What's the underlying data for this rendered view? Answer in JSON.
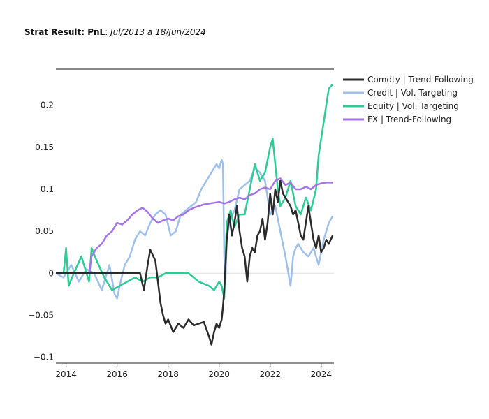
{
  "chart_data": {
    "type": "line",
    "title_bold": "Strat Result: PnL",
    "title_sep": ": ",
    "title_italic": "Jul/2013 a 18/Jun/2024",
    "xlabel": "",
    "ylabel": "",
    "xlim": [
      2013.6,
      2024.5
    ],
    "ylim": [
      -0.107,
      0.243
    ],
    "x_ticks": [
      2014,
      2016,
      2018,
      2020,
      2022,
      2024
    ],
    "y_ticks": [
      -0.1,
      -0.05,
      0,
      0.05,
      0.1,
      0.15,
      0.2
    ],
    "y_tick_labels": [
      "−0.1",
      "−0.05",
      "0",
      "0.05",
      "0.1",
      "0.15",
      "0.2"
    ],
    "legend_position": "top-right",
    "series": [
      {
        "name": "Comdty | Trend-Following",
        "color": "#2b2b2b",
        "x": [
          2013.6,
          2014.0,
          2015.0,
          2016.0,
          2016.9,
          2017.05,
          2017.2,
          2017.3,
          2017.5,
          2017.6,
          2017.7,
          2017.8,
          2017.9,
          2018.0,
          2018.2,
          2018.4,
          2018.6,
          2018.8,
          2019.0,
          2019.2,
          2019.4,
          2019.6,
          2019.7,
          2019.8,
          2019.9,
          2020.0,
          2020.1,
          2020.15,
          2020.2,
          2020.3,
          2020.4,
          2020.5,
          2020.6,
          2020.7,
          2020.8,
          2020.9,
          2021.0,
          2021.1,
          2021.2,
          2021.3,
          2021.4,
          2021.5,
          2021.6,
          2021.7,
          2021.8,
          2021.9,
          2022.0,
          2022.1,
          2022.2,
          2022.3,
          2022.4,
          2022.5,
          2022.6,
          2022.7,
          2022.8,
          2022.9,
          2023.0,
          2023.1,
          2023.2,
          2023.3,
          2023.4,
          2023.5,
          2023.6,
          2023.7,
          2023.8,
          2023.9,
          2024.0,
          2024.1,
          2024.2,
          2024.3,
          2024.45
        ],
        "y": [
          0,
          0,
          0,
          0,
          0,
          -0.02,
          0.01,
          0.028,
          0.015,
          -0.01,
          -0.035,
          -0.05,
          -0.06,
          -0.055,
          -0.07,
          -0.06,
          -0.065,
          -0.055,
          -0.062,
          -0.06,
          -0.058,
          -0.075,
          -0.085,
          -0.07,
          -0.06,
          -0.065,
          -0.055,
          -0.04,
          -0.02,
          0.04,
          0.07,
          0.045,
          0.06,
          0.08,
          0.05,
          0.03,
          0.02,
          -0.01,
          0.02,
          0.03,
          0.025,
          0.045,
          0.05,
          0.065,
          0.04,
          0.06,
          0.095,
          0.07,
          0.1,
          0.085,
          0.11,
          0.095,
          0.09,
          0.085,
          0.08,
          0.07,
          0.075,
          0.06,
          0.045,
          0.04,
          0.06,
          0.08,
          0.06,
          0.04,
          0.03,
          0.045,
          0.025,
          0.03,
          0.04,
          0.035,
          0.045
        ]
      },
      {
        "name": "Credit | Vol. Targeting",
        "color": "#9ec0ea",
        "x": [
          2013.6,
          2013.9,
          2014.2,
          2014.5,
          2014.8,
          2015.1,
          2015.4,
          2015.7,
          2015.9,
          2016.0,
          2016.1,
          2016.3,
          2016.5,
          2016.7,
          2016.9,
          2017.1,
          2017.3,
          2017.5,
          2017.7,
          2017.9,
          2018.1,
          2018.3,
          2018.5,
          2018.7,
          2018.9,
          2019.1,
          2019.3,
          2019.5,
          2019.7,
          2019.9,
          2020.0,
          2020.1,
          2020.15,
          2020.2,
          2020.25,
          2020.3,
          2020.4,
          2020.6,
          2020.8,
          2021.0,
          2021.2,
          2021.4,
          2021.6,
          2021.8,
          2022.0,
          2022.2,
          2022.4,
          2022.6,
          2022.8,
          2022.9,
          2023.0,
          2023.1,
          2023.3,
          2023.5,
          2023.7,
          2023.9,
          2024.1,
          2024.3,
          2024.45
        ],
        "y": [
          0,
          -0.005,
          0.01,
          -0.01,
          0.005,
          0.0,
          -0.02,
          0.01,
          -0.025,
          -0.03,
          -0.015,
          0.01,
          0.02,
          0.04,
          0.05,
          0.045,
          0.06,
          0.07,
          0.075,
          0.07,
          0.045,
          0.05,
          0.07,
          0.075,
          0.08,
          0.085,
          0.1,
          0.11,
          0.12,
          0.13,
          0.125,
          0.135,
          0.13,
          0.02,
          -0.01,
          0.04,
          0.06,
          0.075,
          0.1,
          0.105,
          0.11,
          0.125,
          0.12,
          0.11,
          0.07,
          0.08,
          0.05,
          0.02,
          -0.015,
          0.02,
          0.03,
          0.035,
          0.025,
          0.02,
          0.03,
          0.01,
          0.04,
          0.06,
          0.068
        ]
      },
      {
        "name": "Equity | Vol. Targeting",
        "color": "#2ecc95",
        "x": [
          2013.6,
          2013.9,
          2014.0,
          2014.1,
          2014.3,
          2014.6,
          2014.9,
          2015.0,
          2015.2,
          2015.5,
          2015.8,
          2016.1,
          2016.4,
          2016.7,
          2017.0,
          2017.3,
          2017.6,
          2017.9,
          2018.0,
          2018.4,
          2018.8,
          2019.2,
          2019.6,
          2019.8,
          2020.0,
          2020.1,
          2020.2,
          2020.3,
          2020.45,
          2020.6,
          2020.8,
          2021.0,
          2021.2,
          2021.4,
          2021.6,
          2021.8,
          2022.0,
          2022.1,
          2022.2,
          2022.3,
          2022.4,
          2022.6,
          2022.8,
          2023.0,
          2023.2,
          2023.4,
          2023.6,
          2023.8,
          2023.9,
          2024.0,
          2024.1,
          2024.2,
          2024.3,
          2024.45
        ],
        "y": [
          0,
          0.0,
          0.03,
          -0.015,
          0.0,
          0.02,
          -0.01,
          0.03,
          0.015,
          -0.005,
          -0.02,
          -0.015,
          -0.01,
          -0.005,
          -0.01,
          -0.005,
          -0.005,
          0.0,
          0.0,
          0.0,
          0.0,
          -0.01,
          -0.015,
          -0.02,
          -0.01,
          -0.015,
          -0.03,
          0.06,
          0.075,
          0.055,
          0.07,
          0.07,
          0.1,
          0.13,
          0.11,
          0.12,
          0.15,
          0.16,
          0.13,
          0.1,
          0.08,
          0.09,
          0.11,
          0.08,
          0.07,
          0.09,
          0.075,
          0.1,
          0.14,
          0.16,
          0.18,
          0.2,
          0.22,
          0.225
        ]
      },
      {
        "name": "FX | Trend-Following",
        "color": "#a575e8",
        "x": [
          2013.6,
          2014.0,
          2014.4,
          2014.8,
          2014.9,
          2015.0,
          2015.2,
          2015.4,
          2015.6,
          2015.8,
          2016.0,
          2016.2,
          2016.4,
          2016.6,
          2016.8,
          2017.0,
          2017.2,
          2017.4,
          2017.6,
          2017.8,
          2018.0,
          2018.2,
          2018.4,
          2018.6,
          2018.8,
          2019.0,
          2019.2,
          2019.4,
          2019.6,
          2019.8,
          2020.0,
          2020.2,
          2020.4,
          2020.6,
          2020.8,
          2021.0,
          2021.2,
          2021.4,
          2021.6,
          2021.8,
          2022.0,
          2022.2,
          2022.4,
          2022.6,
          2022.8,
          2023.0,
          2023.2,
          2023.4,
          2023.6,
          2023.8,
          2024.0,
          2024.2,
          2024.45
        ],
        "y": [
          0,
          0.0,
          0.0,
          0.0,
          0.0,
          0.02,
          0.03,
          0.035,
          0.045,
          0.05,
          0.06,
          0.058,
          0.063,
          0.07,
          0.075,
          0.078,
          0.073,
          0.065,
          0.06,
          0.063,
          0.065,
          0.063,
          0.068,
          0.07,
          0.075,
          0.078,
          0.08,
          0.082,
          0.083,
          0.084,
          0.085,
          0.083,
          0.085,
          0.088,
          0.09,
          0.088,
          0.093,
          0.095,
          0.1,
          0.102,
          0.1,
          0.11,
          0.113,
          0.105,
          0.108,
          0.1,
          0.1,
          0.103,
          0.1,
          0.105,
          0.107,
          0.108,
          0.108
        ]
      }
    ]
  }
}
